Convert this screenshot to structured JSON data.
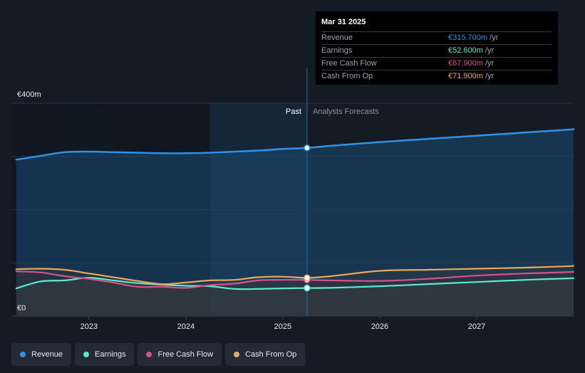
{
  "chart_data": {
    "type": "line",
    "ylim": [
      0,
      400
    ],
    "y_ticks": [
      {
        "value": 400,
        "label": "€400m"
      },
      {
        "value": 0,
        "label": "€0"
      }
    ],
    "x_ticks": [
      {
        "value": 2023,
        "label": "2023"
      },
      {
        "value": 2024,
        "label": "2024"
      },
      {
        "value": 2025,
        "label": "2025"
      },
      {
        "value": 2026,
        "label": "2026"
      },
      {
        "value": 2027,
        "label": "2027"
      }
    ],
    "xlim": [
      2022.2,
      2028.0
    ],
    "past_label": "Past",
    "forecast_label": "Analysts Forecasts",
    "forecast_start": 2025.25,
    "highlight_start": 2024.25,
    "grid": true,
    "legend_position": "bottom-left",
    "series": [
      {
        "name": "Revenue",
        "color": "#2e93e8",
        "x": [
          2022.25,
          2022.5,
          2022.75,
          2023.0,
          2023.25,
          2023.5,
          2023.75,
          2024.0,
          2024.25,
          2024.5,
          2024.75,
          2025.0,
          2025.25,
          2025.5,
          2026.0,
          2026.5,
          2027.0,
          2027.5,
          2028.0
        ],
        "y": [
          294,
          301,
          308,
          309,
          308,
          307,
          306,
          306,
          307,
          309,
          311,
          314,
          316,
          320,
          327,
          333,
          339,
          345,
          351
        ]
      },
      {
        "name": "Earnings",
        "color": "#5ee8d0",
        "x": [
          2022.25,
          2022.5,
          2022.75,
          2023.0,
          2023.25,
          2023.5,
          2023.75,
          2024.0,
          2024.25,
          2024.5,
          2024.75,
          2025.0,
          2025.25,
          2025.5,
          2026.0,
          2026.5,
          2027.0,
          2027.5,
          2028.0
        ],
        "y": [
          52,
          65,
          67,
          72,
          67,
          62,
          59,
          57,
          56,
          51,
          51,
          52,
          52.6,
          53,
          56,
          60,
          64,
          68,
          71
        ]
      },
      {
        "name": "Free Cash Flow",
        "color": "#d6538a",
        "x": [
          2022.25,
          2022.5,
          2022.75,
          2023.0,
          2023.25,
          2023.5,
          2023.75,
          2024.0,
          2024.25,
          2024.5,
          2024.75,
          2025.0,
          2025.25,
          2025.5,
          2026.0,
          2026.5,
          2027.0,
          2027.5,
          2028.0
        ],
        "y": [
          84,
          82,
          75,
          70,
          63,
          55,
          55,
          53,
          58,
          61,
          67,
          68,
          67.9,
          67,
          66,
          70,
          76,
          80,
          83
        ]
      },
      {
        "name": "Cash From Op",
        "color": "#e8aa5a",
        "x": [
          2022.25,
          2022.5,
          2022.75,
          2023.0,
          2023.25,
          2023.5,
          2023.75,
          2024.0,
          2024.25,
          2024.5,
          2024.75,
          2025.0,
          2025.25,
          2025.5,
          2026.0,
          2026.5,
          2027.0,
          2027.5,
          2028.0
        ],
        "y": [
          88,
          89,
          87,
          80,
          73,
          66,
          60,
          63,
          67,
          68,
          73,
          74,
          71.9,
          75,
          85,
          87,
          89,
          91,
          94
        ]
      }
    ]
  },
  "tooltip": {
    "date": "Mar 31 2025",
    "rows": [
      {
        "label": "Revenue",
        "value": "€315.700m",
        "unit": "/yr",
        "color": "#2e93e8"
      },
      {
        "label": "Earnings",
        "value": "€52.600m",
        "unit": "/yr",
        "color": "#5ee8d0"
      },
      {
        "label": "Free Cash Flow",
        "value": "€67.900m",
        "unit": "/yr",
        "color": "#d6538a"
      },
      {
        "label": "Cash From Op",
        "value": "€71.900m",
        "unit": "/yr",
        "color": "#e8aa5a"
      }
    ]
  },
  "legend": [
    {
      "label": "Revenue",
      "color": "#2e93e8"
    },
    {
      "label": "Earnings",
      "color": "#5ee8d0"
    },
    {
      "label": "Free Cash Flow",
      "color": "#d6538a"
    },
    {
      "label": "Cash From Op",
      "color": "#e8aa5a"
    }
  ]
}
